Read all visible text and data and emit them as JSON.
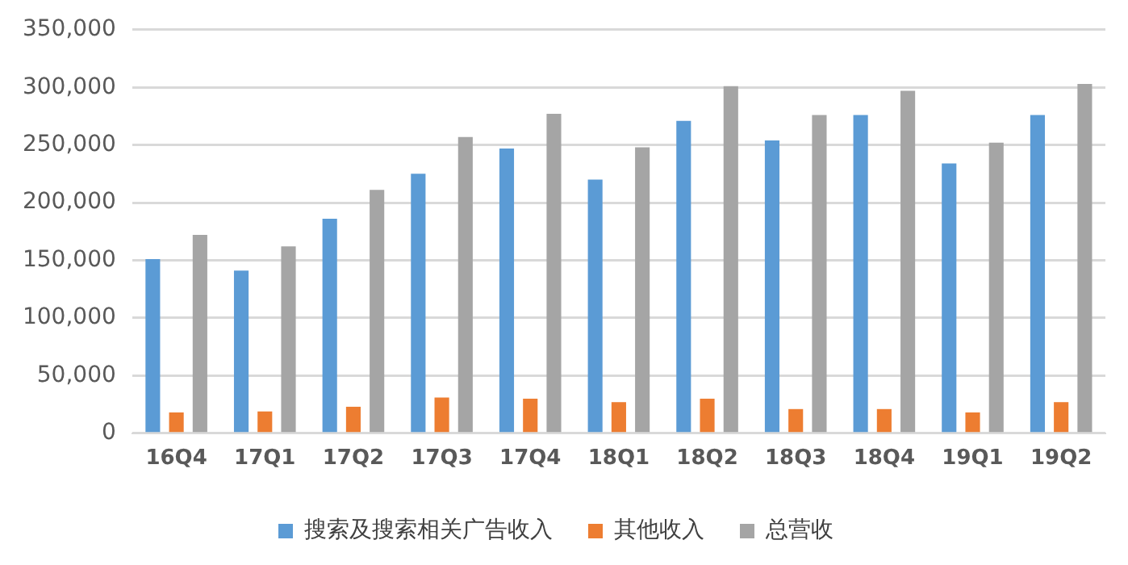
{
  "chart_data": {
    "type": "bar",
    "categories": [
      "16Q4",
      "17Q1",
      "17Q2",
      "17Q3",
      "17Q4",
      "18Q1",
      "18Q2",
      "18Q3",
      "18Q4",
      "19Q1",
      "19Q2"
    ],
    "series": [
      {
        "name": "搜索及搜索相关广告收入",
        "color": "#5b9bd5",
        "values": [
          151000,
          141000,
          186000,
          225000,
          247000,
          220000,
          271000,
          254000,
          276000,
          234000,
          276000
        ]
      },
      {
        "name": "其他收入",
        "color": "#ed7d31",
        "values": [
          18000,
          19000,
          23000,
          31000,
          30000,
          27000,
          30000,
          21000,
          21000,
          18000,
          27000
        ]
      },
      {
        "name": "总营收",
        "color": "#a5a5a5",
        "values": [
          172000,
          162000,
          211000,
          257000,
          277000,
          248000,
          301000,
          276000,
          297000,
          252000,
          303000
        ]
      }
    ],
    "ylim": [
      0,
      350000
    ],
    "yticks": [
      {
        "value": 0,
        "label": "0"
      },
      {
        "value": 50000,
        "label": "50,000"
      },
      {
        "value": 100000,
        "label": "100,000"
      },
      {
        "value": 150000,
        "label": "150,000"
      },
      {
        "value": 200000,
        "label": "200,000"
      },
      {
        "value": 250000,
        "label": "250,000"
      },
      {
        "value": 300000,
        "label": "300,000"
      },
      {
        "value": 350000,
        "label": "350,000"
      }
    ],
    "grid": "y",
    "legend": "bottom"
  }
}
